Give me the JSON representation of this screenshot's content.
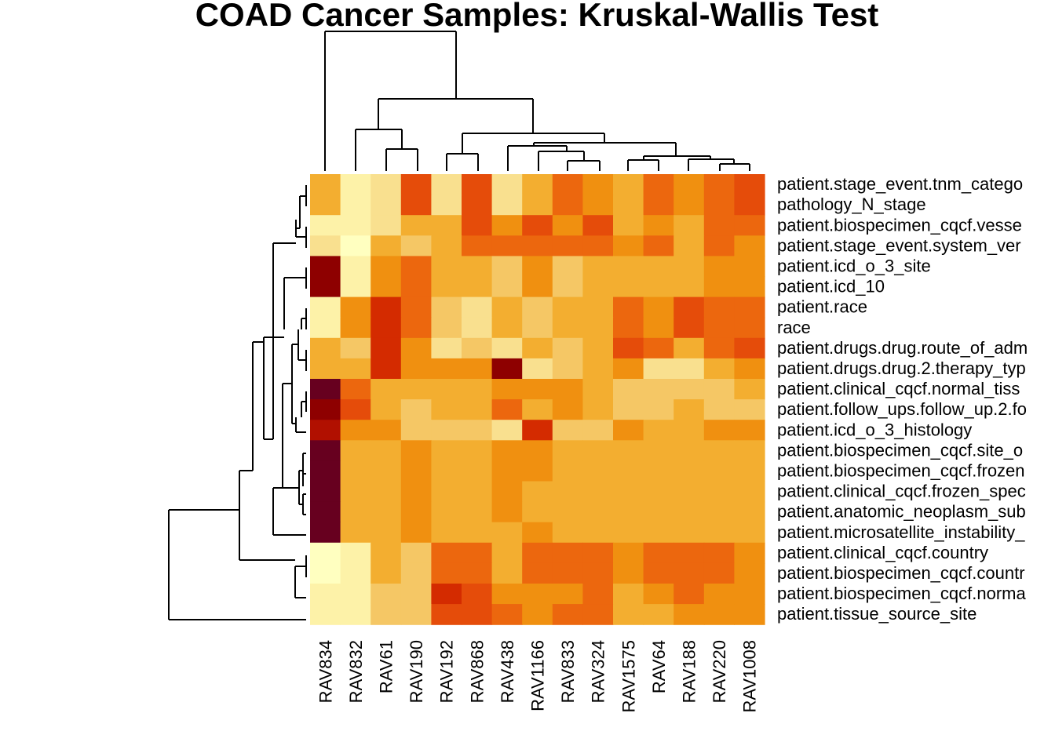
{
  "chart_data": {
    "type": "heatmap",
    "title": "COAD Cancer Samples: Kruskal-Wallis Test",
    "columns": [
      "RAV834",
      "RAV832",
      "RAV61",
      "RAV190",
      "RAV192",
      "RAV868",
      "RAV438",
      "RAV1166",
      "RAV833",
      "RAV324",
      "RAV1575",
      "RAV64",
      "RAV188",
      "RAV220",
      "RAV1008"
    ],
    "rows": [
      "patient.stage_event.tnm_catego",
      "pathology_N_stage",
      "patient.biospecimen_cqcf.vesse",
      "patient.stage_event.system_ver",
      "patient.icd_o_3_site",
      "patient.icd_10",
      "patient.race",
      "race",
      "patient.drugs.drug.route_of_adm",
      "patient.drugs.drug.2.therapy_typ",
      "patient.clinical_cqcf.normal_tiss",
      "patient.follow_ups.follow_up.2.fo",
      "patient.icd_o_3_histology",
      "patient.biospecimen_cqcf.site_o",
      "patient.biospecimen_cqcf.frozen",
      "patient.clinical_cqcf.frozen_spec",
      "patient.anatomic_neoplasm_sub",
      "patient.microsatellite_instability_",
      "patient.clinical_cqcf.country",
      "patient.biospecimen_cqcf.countr",
      "patient.biospecimen_cqcf.norma",
      "patient.tissue_source_site"
    ],
    "palette": [
      "#67001F",
      "#8E0000",
      "#B11000",
      "#D42B00",
      "#E54C0A",
      "#EC670E",
      "#F09010",
      "#F3AE30",
      "#F5C765",
      "#F9E08F",
      "#FDF2A8",
      "#FFFFC0"
    ],
    "values": [
      [
        7,
        10,
        9,
        4,
        9,
        4,
        9,
        7,
        5,
        6,
        7,
        5,
        6,
        5,
        4
      ],
      [
        7,
        10,
        9,
        4,
        9,
        4,
        9,
        7,
        5,
        6,
        7,
        5,
        6,
        5,
        4
      ],
      [
        10,
        10,
        9,
        7,
        7,
        4,
        6,
        4,
        6,
        4,
        7,
        6,
        7,
        5,
        5
      ],
      [
        9,
        11,
        7,
        8,
        7,
        5,
        5,
        5,
        5,
        5,
        6,
        5,
        7,
        5,
        6
      ],
      [
        1,
        10,
        6,
        5,
        7,
        7,
        8,
        6,
        8,
        7,
        7,
        7,
        7,
        6,
        6
      ],
      [
        1,
        10,
        6,
        5,
        7,
        7,
        8,
        6,
        8,
        7,
        7,
        7,
        7,
        6,
        6
      ],
      [
        10,
        6,
        3,
        5,
        8,
        9,
        7,
        8,
        7,
        7,
        5,
        6,
        4,
        5,
        5
      ],
      [
        10,
        6,
        3,
        5,
        8,
        9,
        7,
        8,
        7,
        7,
        5,
        6,
        4,
        5,
        5
      ],
      [
        7,
        8,
        3,
        6,
        9,
        8,
        9,
        7,
        8,
        7,
        4,
        5,
        7,
        5,
        4
      ],
      [
        7,
        7,
        3,
        6,
        6,
        6,
        1,
        9,
        8,
        7,
        6,
        9,
        9,
        7,
        6
      ],
      [
        0,
        5,
        7,
        7,
        7,
        7,
        6,
        6,
        6,
        7,
        8,
        8,
        8,
        8,
        7
      ],
      [
        1,
        4,
        7,
        8,
        7,
        7,
        5,
        7,
        6,
        7,
        8,
        8,
        7,
        8,
        8
      ],
      [
        2,
        6,
        6,
        8,
        8,
        8,
        9,
        3,
        8,
        8,
        6,
        7,
        7,
        6,
        6
      ],
      [
        0,
        7,
        7,
        6,
        7,
        7,
        6,
        6,
        7,
        7,
        7,
        7,
        7,
        7,
        7
      ],
      [
        0,
        7,
        7,
        6,
        7,
        7,
        6,
        6,
        7,
        7,
        7,
        7,
        7,
        7,
        7
      ],
      [
        0,
        7,
        7,
        6,
        7,
        7,
        6,
        7,
        7,
        7,
        7,
        7,
        7,
        7,
        7
      ],
      [
        0,
        7,
        7,
        6,
        7,
        7,
        6,
        7,
        7,
        7,
        7,
        7,
        7,
        7,
        7
      ],
      [
        0,
        7,
        7,
        6,
        7,
        7,
        7,
        6,
        7,
        7,
        7,
        7,
        7,
        7,
        7
      ],
      [
        11,
        10,
        7,
        8,
        5,
        5,
        7,
        5,
        5,
        5,
        6,
        5,
        5,
        5,
        6
      ],
      [
        11,
        10,
        7,
        8,
        5,
        5,
        7,
        5,
        5,
        5,
        6,
        5,
        5,
        5,
        6
      ],
      [
        10,
        10,
        8,
        8,
        3,
        4,
        6,
        6,
        6,
        5,
        7,
        6,
        5,
        6,
        6
      ],
      [
        10,
        10,
        8,
        8,
        4,
        4,
        5,
        6,
        5,
        5,
        7,
        7,
        6,
        6,
        6
      ]
    ],
    "value_scale": "ordinal color index into palette (0 = darkest red, 11 = lightest yellow)",
    "column_dendrogram": true,
    "row_dendrogram": true
  }
}
